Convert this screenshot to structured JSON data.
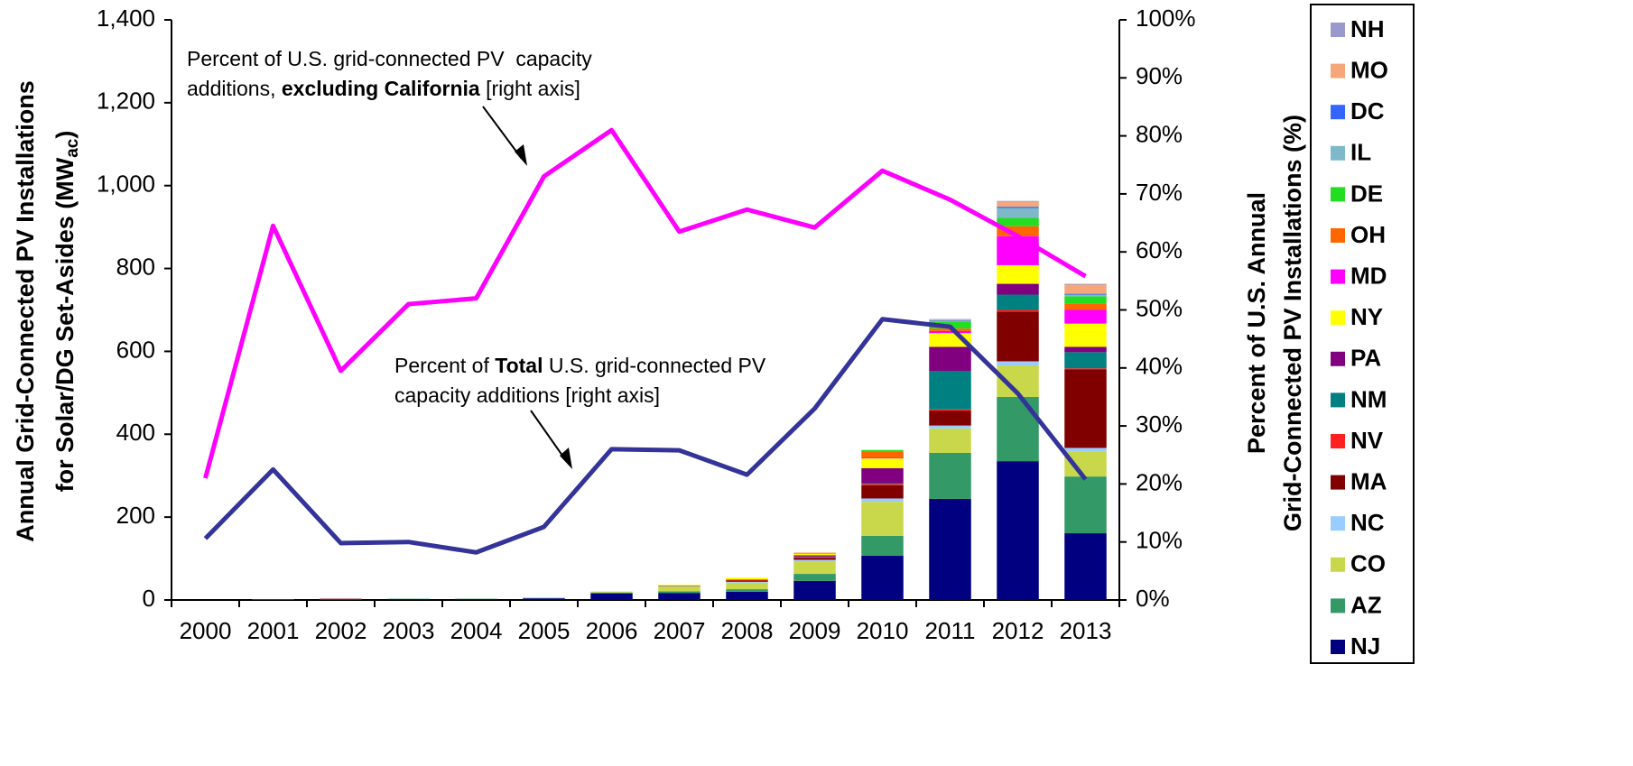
{
  "chart_data": {
    "type": "bar",
    "stacked": true,
    "categories": [
      "2000",
      "2001",
      "2002",
      "2003",
      "2004",
      "2005",
      "2006",
      "2007",
      "2008",
      "2009",
      "2010",
      "2011",
      "2012",
      "2013"
    ],
    "series": [
      {
        "name": "NJ",
        "color": "#000080",
        "values": [
          0,
          1,
          1,
          2,
          2,
          4,
          16,
          17,
          20,
          46,
          107,
          244,
          335,
          161
        ]
      },
      {
        "name": "AZ",
        "color": "#339966",
        "values": [
          0,
          1,
          1,
          1,
          1,
          1,
          2,
          4,
          6,
          17,
          48,
          111,
          155,
          137
        ]
      },
      {
        "name": "CO",
        "color": "#c8d84a",
        "values": [
          0,
          0,
          0,
          0,
          0,
          0,
          2,
          12,
          16,
          31,
          82,
          59,
          76,
          61
        ]
      },
      {
        "name": "NC",
        "color": "#99ccff",
        "values": [
          0,
          0,
          0,
          0,
          0,
          0,
          0,
          1,
          2,
          3,
          8,
          7,
          10,
          8
        ]
      },
      {
        "name": "MA",
        "color": "#800000",
        "values": [
          0,
          0,
          1,
          0,
          0,
          0,
          0,
          1,
          3,
          5,
          32,
          36,
          120,
          190
        ]
      },
      {
        "name": "NV",
        "color": "#ff2020",
        "values": [
          0,
          0,
          0,
          0,
          0,
          0,
          0,
          0,
          1,
          2,
          3,
          3,
          4,
          2
        ]
      },
      {
        "name": "NM",
        "color": "#008080",
        "values": [
          0,
          0,
          0,
          0,
          0,
          0,
          0,
          0,
          0,
          1,
          2,
          93,
          37,
          39
        ]
      },
      {
        "name": "PA",
        "color": "#800080",
        "values": [
          0,
          0,
          0,
          0,
          0,
          0,
          0,
          0,
          1,
          3,
          36,
          58,
          26,
          13
        ]
      },
      {
        "name": "NY",
        "color": "#ffff00",
        "values": [
          0,
          0,
          0,
          0,
          0,
          0,
          1,
          2,
          5,
          4,
          24,
          33,
          45,
          56
        ]
      },
      {
        "name": "MD",
        "color": "#ff00ff",
        "values": [
          0,
          0,
          0,
          0,
          0,
          0,
          0,
          0,
          0,
          1,
          2,
          5,
          70,
          33
        ]
      },
      {
        "name": "OH",
        "color": "#ff6600",
        "values": [
          0,
          0,
          0,
          0,
          0,
          0,
          0,
          0,
          0,
          1,
          15,
          6,
          24,
          15
        ]
      },
      {
        "name": "DE",
        "color": "#22dd22",
        "values": [
          0,
          0,
          0,
          0,
          0,
          0,
          0,
          0,
          0,
          0,
          3,
          17,
          20,
          18
        ]
      },
      {
        "name": "IL",
        "color": "#7fb8c8",
        "values": [
          0,
          0,
          0,
          0,
          0,
          0,
          0,
          0,
          0,
          0,
          0,
          2,
          24,
          4
        ]
      },
      {
        "name": "DC",
        "color": "#3366ff",
        "values": [
          0,
          0,
          0,
          0,
          0,
          0,
          0,
          0,
          0,
          0,
          0,
          1,
          3,
          2
        ]
      },
      {
        "name": "MO",
        "color": "#f5a77a",
        "values": [
          0,
          0,
          0,
          0,
          0,
          0,
          0,
          0,
          0,
          0,
          0,
          2,
          12,
          22
        ]
      },
      {
        "name": "NH",
        "color": "#9999cc",
        "values": [
          0,
          0,
          0,
          0,
          0,
          0,
          0,
          0,
          0,
          0,
          0,
          1,
          2,
          2
        ]
      }
    ],
    "lines": [
      {
        "color": "#ff00ff",
        "axis": "y2",
        "values": [
          21,
          64.5,
          39.5,
          51,
          52,
          73,
          81,
          63.5,
          67.3,
          64.2,
          74,
          69,
          62.7,
          55.8
        ]
      },
      {
        "color": "#333399",
        "axis": "y2",
        "values": [
          10.6,
          22.5,
          9.8,
          10,
          8.2,
          12.6,
          26,
          25.8,
          21.6,
          33,
          48.4,
          47.1,
          35.6,
          20.8
        ]
      }
    ],
    "ylim": [
      0,
      1400
    ],
    "yticks": [
      0,
      200,
      400,
      600,
      800,
      {
        "value": 1000,
        "label": "1,000"
      },
      {
        "value": 1200,
        "label": "1,200"
      },
      {
        "value": 1400,
        "label": "1,400"
      }
    ],
    "y2lim": [
      0,
      100
    ],
    "y2ticks": [
      {
        "value": 0,
        "label": "0%"
      },
      {
        "value": 10,
        "label": "10%"
      },
      {
        "value": 20,
        "label": "20%"
      },
      {
        "value": 30,
        "label": "30%"
      },
      {
        "value": 40,
        "label": "40%"
      },
      {
        "value": 50,
        "label": "50%"
      },
      {
        "value": 60,
        "label": "60%"
      },
      {
        "value": 70,
        "label": "70%"
      },
      {
        "value": 80,
        "label": "80%"
      },
      {
        "value": 90,
        "label": "90%"
      },
      {
        "value": 100,
        "label": "100%"
      }
    ],
    "ylabel": {
      "lines": [
        "Annual Grid-Connected PV Installations",
        "for Solar/DG Set-Asides (MW"
      ],
      "sub": "ac",
      "end": ")"
    },
    "y2label": [
      "Percent of U.S. Annual",
      "Grid-Connected PV Installations (%)"
    ],
    "annotations": [
      {
        "lines": [
          [
            {
              "text": "Percent of U.S. grid-connected PV  capacity"
            }
          ],
          [
            {
              "text": "additions, "
            },
            {
              "text": "excluding California",
              "bold": true
            },
            {
              "text": " [right axis]"
            }
          ]
        ]
      },
      {
        "lines": [
          [
            {
              "text": "Percent of "
            },
            {
              "text": "Total",
              "bold": true
            },
            {
              "text": " U.S. grid-connected PV"
            }
          ],
          [
            {
              "text": "capacity additions [right axis]"
            }
          ]
        ]
      }
    ],
    "legend": "right",
    "legend_order": "reverse",
    "grid": false
  }
}
